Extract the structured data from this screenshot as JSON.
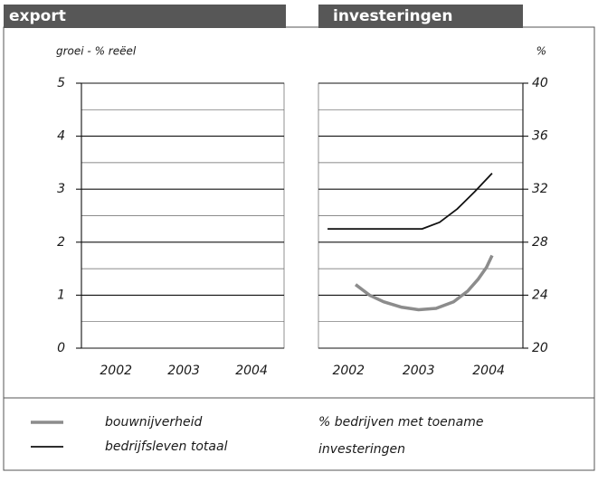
{
  "chart_data": [
    {
      "type": "line",
      "title": "export",
      "y_label": "groei - % reëel",
      "y_side": "left",
      "xlim": [
        2001.49,
        2004.48
      ],
      "xticks": [
        2002,
        2003,
        2004
      ],
      "ylim": [
        0,
        5
      ],
      "yticks": [
        0,
        1,
        2,
        3,
        4,
        5
      ],
      "minor_yticks": [
        0.5,
        1.5,
        2.5,
        3.5,
        4.5
      ],
      "grid": true,
      "series": []
    },
    {
      "type": "line",
      "title": "investeringen",
      "y_label": "%",
      "y_side": "right",
      "xlim": [
        2001.57,
        2004.49
      ],
      "xticks": [
        2002,
        2003,
        2004
      ],
      "ylim": [
        20,
        40
      ],
      "yticks": [
        20,
        24,
        28,
        32,
        36,
        40
      ],
      "minor_yticks": [
        22,
        26,
        30,
        34,
        38
      ],
      "grid": true,
      "series": [
        {
          "name": "bouwnijverheid",
          "color": "#8c8c8c",
          "width": 3.5,
          "x": [
            2002.1,
            2002.3,
            2002.5,
            2002.75,
            2003,
            2003.25,
            2003.5,
            2003.7,
            2003.85,
            2003.97,
            2004.05
          ],
          "values": [
            24.8,
            24.0,
            23.5,
            23.1,
            22.9,
            23.0,
            23.5,
            24.3,
            25.2,
            26.1,
            27.0
          ]
        },
        {
          "name": "bedrijfsleven totaal",
          "color": "#111111",
          "width": 1.8,
          "x": [
            2001.7,
            2002.5,
            2003.05,
            2003.3,
            2003.55,
            2003.8,
            2004.05
          ],
          "values": [
            29,
            29,
            29,
            29.5,
            30.5,
            31.8,
            33.2
          ]
        }
      ]
    }
  ],
  "note": [
    "% bedrijven met toename",
    "investeringen"
  ]
}
